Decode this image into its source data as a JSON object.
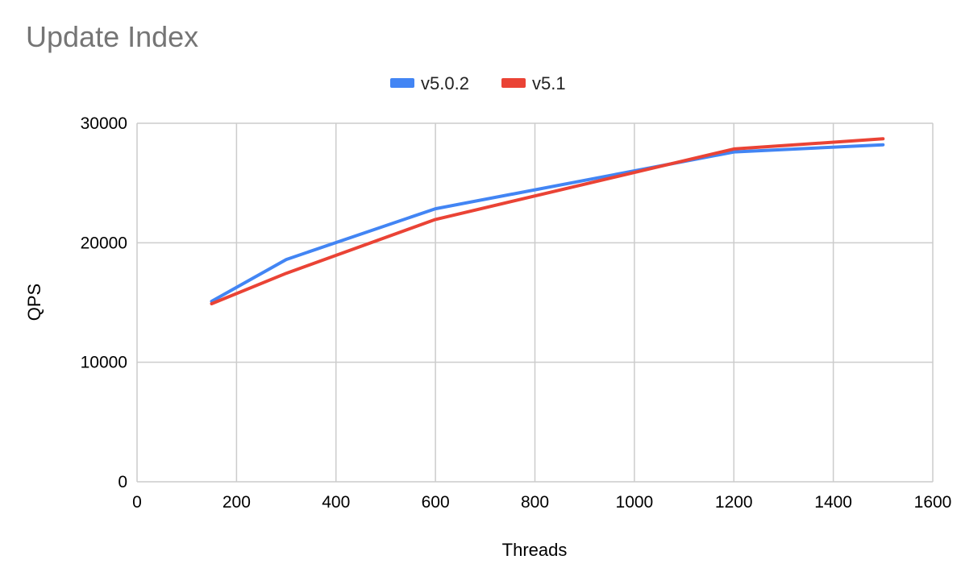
{
  "chart_data": {
    "type": "line",
    "title": "Update Index",
    "xlabel": "Threads",
    "ylabel": "QPS",
    "xlim": [
      0,
      1600
    ],
    "ylim": [
      0,
      30000
    ],
    "x_ticks": [
      "0",
      "200",
      "400",
      "600",
      "800",
      "1000",
      "1200",
      "1400",
      "1600"
    ],
    "y_ticks": [
      "0",
      "10000",
      "20000",
      "30000"
    ],
    "grid": true,
    "legend_position": "top",
    "series": [
      {
        "name": "v5.0.2",
        "color": "#4285f4",
        "x": [
          150,
          300,
          600,
          1200,
          1500
        ],
        "y": [
          15100,
          18600,
          22850,
          27600,
          28200
        ]
      },
      {
        "name": "v5.1",
        "color": "#ea4335",
        "x": [
          150,
          300,
          600,
          1200,
          1500
        ],
        "y": [
          14900,
          17450,
          21950,
          27850,
          28700
        ]
      }
    ]
  }
}
